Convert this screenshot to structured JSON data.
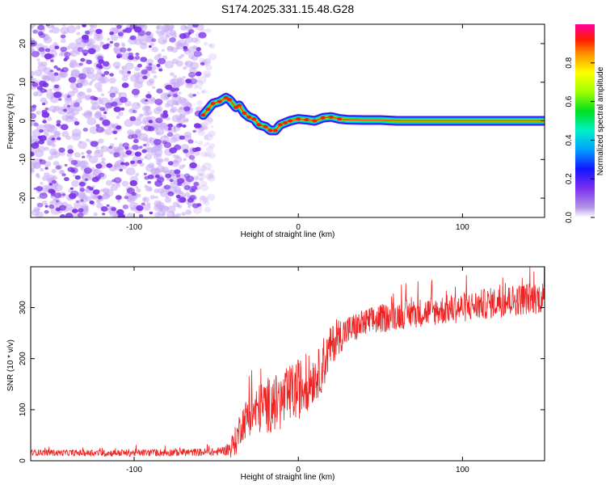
{
  "title": "S174.2025.331.15.48.G28",
  "colors": {
    "line": "#ee2222",
    "scatter": "#7a2fe8",
    "scatter_light": "#c7a9f5",
    "axis": "#000000"
  },
  "chart_data": [
    {
      "type": "heatmap",
      "name": "spectrogram",
      "xlabel": "Height of straight line (km)",
      "ylabel": "Frequency (Hz)",
      "xlim": [
        -163,
        150
      ],
      "ylim": [
        -25,
        25
      ],
      "xticks": [
        -100,
        0,
        100
      ],
      "xtick_labels": [
        "-100",
        "0",
        "100"
      ],
      "yticks": [
        20,
        10,
        0,
        -10,
        -20
      ],
      "ytick_labels": [
        "20",
        "10",
        "0",
        "-10",
        "-20"
      ],
      "noise_region_x": [
        -163,
        -58
      ],
      "ridge": {
        "x": [
          -58,
          -55,
          -52,
          -48,
          -44,
          -42,
          -38,
          -36,
          -33,
          -30,
          -27,
          -24,
          -20,
          -17,
          -14,
          -11,
          -8,
          -5,
          0,
          5,
          10,
          15,
          20,
          25,
          30,
          40,
          50,
          60,
          80,
          100,
          120,
          150
        ],
        "y": [
          1.5,
          3.0,
          4.5,
          5.0,
          6.0,
          5.5,
          3.5,
          4.0,
          2.0,
          1.0,
          0.5,
          -1.0,
          -1.5,
          -2.5,
          -2.5,
          -1.0,
          -0.5,
          0.0,
          0.5,
          0.3,
          0.0,
          0.8,
          1.0,
          0.5,
          0.3,
          0.2,
          0.2,
          0.0,
          0.0,
          0.0,
          0.0,
          0.0
        ]
      },
      "colorbar": {
        "label": "Normalized spectral amplitude",
        "range": [
          0,
          1
        ],
        "ticks": [
          0.0,
          0.2,
          0.4,
          0.6,
          0.8
        ],
        "tick_labels": [
          "0.0",
          "0.2",
          "0.4",
          "0.6",
          "0.8"
        ]
      }
    },
    {
      "type": "line",
      "name": "snr",
      "xlabel": "Height of straight line (km)",
      "ylabel": "SNR (10 * v/v)",
      "xlim": [
        -163,
        150
      ],
      "ylim": [
        0,
        380
      ],
      "xticks": [
        -100,
        0,
        100
      ],
      "xtick_labels": [
        "-100",
        "0",
        "100"
      ],
      "yticks": [
        0,
        100,
        200,
        300
      ],
      "ytick_labels": [
        "0",
        "100",
        "200",
        "300"
      ],
      "trend": {
        "x": [
          -163,
          -120,
          -80,
          -50,
          -42,
          -38,
          -35,
          -30,
          -25,
          -20,
          -15,
          -10,
          -5,
          0,
          5,
          10,
          15,
          18,
          20,
          25,
          30,
          40,
          50,
          60,
          80,
          100,
          120,
          140,
          150
        ],
        "y": [
          16,
          15,
          16,
          17,
          22,
          40,
          70,
          90,
          100,
          108,
          112,
          115,
          130,
          140,
          150,
          165,
          180,
          210,
          225,
          245,
          255,
          268,
          278,
          285,
          292,
          300,
          310,
          318,
          320
        ]
      },
      "noise_amplitude": {
        "x": [
          -163,
          -45,
          -38,
          -20,
          0,
          15,
          30,
          60,
          150
        ],
        "y": [
          6,
          8,
          30,
          55,
          60,
          45,
          30,
          28,
          32
        ]
      }
    }
  ]
}
